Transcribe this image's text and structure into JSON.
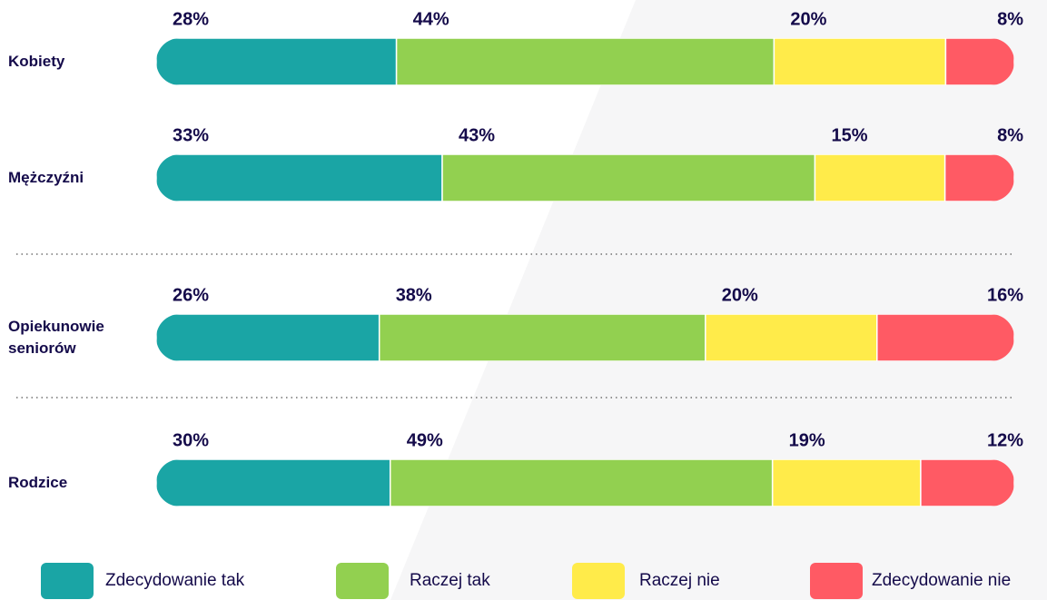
{
  "chart_data": {
    "type": "stacked-bar",
    "categories": [
      "Kobiety",
      "Mężczyźni",
      "Opiekunowie seniorów",
      "Rodzice"
    ],
    "series": [
      {
        "name": "Zdecydowanie tak",
        "color": "#1aa5a5",
        "values": [
          28,
          33,
          26,
          30
        ]
      },
      {
        "name": "Raczej tak",
        "color": "#92d050",
        "values": [
          44,
          43,
          38,
          49
        ]
      },
      {
        "name": "Raczej nie",
        "color": "#ffeb4a",
        "values": [
          20,
          15,
          20,
          19
        ]
      },
      {
        "name": "Zdecydowanie nie",
        "color": "#ff5a64",
        "values": [
          8,
          8,
          16,
          12
        ]
      }
    ],
    "value_labels": [
      [
        "28%",
        "33%",
        "26%",
        "30%"
      ],
      [
        "44%",
        "43%",
        "38%",
        "49%"
      ],
      [
        "20%",
        "15%",
        "20%",
        "19%"
      ],
      [
        "8%",
        "8%",
        "16%",
        "12%"
      ]
    ]
  }
}
